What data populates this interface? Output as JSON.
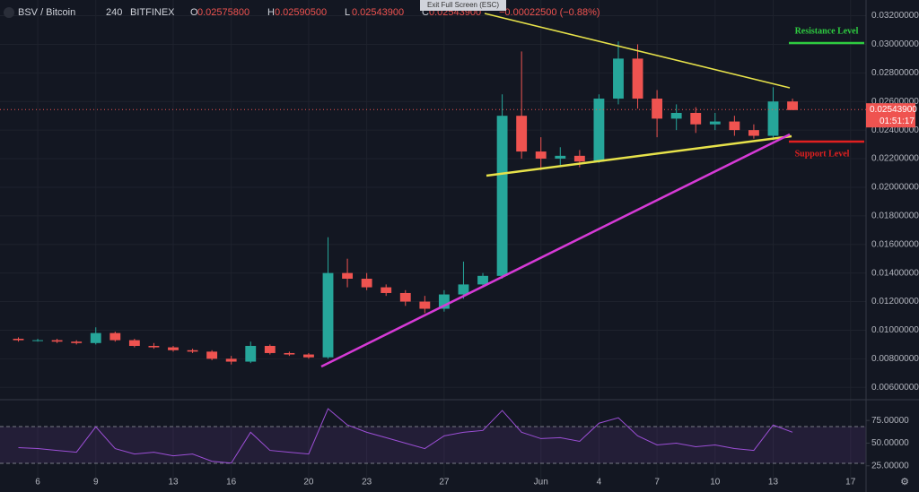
{
  "chart_data": {
    "type": "candlestick",
    "title": "BSV / Bitcoin",
    "interval": "240",
    "exchange": "BITFINEX",
    "header": [
      {
        "key": "O",
        "value": {
          "value": 0.025758,
          "label": "0.02575800"
        }
      },
      {
        "key": "H",
        "value": {
          "value": 0.025905,
          "label": "0.02590500"
        }
      },
      {
        "key": "L",
        "value": {
          "value": 0.025439,
          "label": "0.02543900"
        }
      },
      {
        "key": "C",
        "value": {
          "value": 0.025439,
          "label": "0.02543900"
        }
      }
    ],
    "change": "−0.00022500 (−0.88%)",
    "exit_button": "Exit Full Screen (ESC)",
    "annotations": {
      "resistance": "Resistance Level",
      "support": "Support Level"
    },
    "last_price": {
      "value": 0.025439,
      "label": "0.02543900"
    },
    "countdown": "01:51:17",
    "x": [
      -1,
      0,
      1,
      2,
      3,
      4,
      5,
      6,
      7,
      8,
      9,
      10,
      11,
      12,
      13,
      14,
      15,
      16,
      17,
      18,
      19,
      20,
      21,
      22,
      23,
      24,
      25,
      26,
      27,
      28,
      29,
      30,
      31,
      32,
      33,
      34,
      35,
      36,
      37,
      38,
      39
    ],
    "open": [
      0.0094,
      0.0093,
      0.0093,
      0.0092,
      0.0091,
      0.0098,
      0.0093,
      0.0089,
      0.0088,
      0.0086,
      0.0085,
      0.008,
      0.0078,
      0.0089,
      0.0084,
      0.0083,
      0.0081,
      0.014,
      0.0136,
      0.013,
      0.0126,
      0.012,
      0.0115,
      0.0125,
      0.0132,
      0.0138,
      0.025,
      0.0225,
      0.022,
      0.0222,
      0.0218,
      0.0262,
      0.029,
      0.0262,
      0.0248,
      0.0252,
      0.0244,
      0.0246,
      0.024,
      0.0236,
      0.026
    ],
    "high": [
      0.0095,
      0.0094,
      0.0094,
      0.0093,
      0.0102,
      0.0099,
      0.0094,
      0.0091,
      0.0089,
      0.0087,
      0.0086,
      0.0082,
      0.0092,
      0.009,
      0.0085,
      0.0084,
      0.0165,
      0.015,
      0.014,
      0.0132,
      0.0128,
      0.0124,
      0.0128,
      0.0148,
      0.014,
      0.0265,
      0.0295,
      0.0235,
      0.0228,
      0.0226,
      0.0265,
      0.0302,
      0.03,
      0.0268,
      0.0258,
      0.0256,
      0.0252,
      0.025,
      0.0244,
      0.027,
      0.0262
    ],
    "low": [
      0.0092,
      0.0092,
      0.0091,
      0.009,
      0.009,
      0.0092,
      0.0088,
      0.0087,
      0.0085,
      0.0084,
      0.0079,
      0.0076,
      0.0077,
      0.0083,
      0.0082,
      0.008,
      0.008,
      0.013,
      0.0128,
      0.0124,
      0.0117,
      0.0112,
      0.0113,
      0.0122,
      0.013,
      0.0136,
      0.022,
      0.0212,
      0.0215,
      0.0214,
      0.0217,
      0.0258,
      0.0255,
      0.0235,
      0.024,
      0.0238,
      0.024,
      0.0236,
      0.0234,
      0.0233,
      0.0254
    ],
    "close": [
      0.0093,
      0.0093,
      0.0092,
      0.0091,
      0.0098,
      0.0093,
      0.0089,
      0.0088,
      0.0086,
      0.0085,
      0.008,
      0.0078,
      0.0089,
      0.0084,
      0.0083,
      0.0081,
      0.014,
      0.0136,
      0.013,
      0.0126,
      0.012,
      0.0115,
      0.0125,
      0.0132,
      0.0138,
      0.025,
      0.0225,
      0.022,
      0.0222,
      0.0218,
      0.0262,
      0.029,
      0.0262,
      0.0248,
      0.0252,
      0.0244,
      0.0246,
      0.024,
      0.0236,
      0.026,
      0.0254
    ],
    "rsi": [
      45,
      44,
      42,
      40,
      68,
      44,
      38,
      40,
      36,
      38,
      30,
      28,
      62,
      42,
      40,
      38,
      88,
      70,
      62,
      56,
      50,
      44,
      58,
      62,
      64,
      86,
      62,
      55,
      56,
      52,
      72,
      78,
      58,
      48,
      50,
      46,
      48,
      44,
      42,
      70,
      62
    ],
    "up_color": "#26a69a",
    "down_color": "#ef5350",
    "rsi_color": "#9c4fd6",
    "xlim": [
      -1.95,
      42.8
    ],
    "xticks": [
      {
        "value": 0,
        "label": "6"
      },
      {
        "value": 3,
        "label": "9"
      },
      {
        "value": 7,
        "label": "13"
      },
      {
        "value": 10,
        "label": "16"
      },
      {
        "value": 14,
        "label": "20"
      },
      {
        "value": 17,
        "label": "23"
      },
      {
        "value": 21,
        "label": "27"
      },
      {
        "value": 26,
        "label": "Jun"
      },
      {
        "value": 29,
        "label": "4"
      },
      {
        "value": 32,
        "label": "7"
      },
      {
        "value": 35,
        "label": "10"
      },
      {
        "value": 38,
        "label": "13"
      },
      {
        "value": 42,
        "label": "17"
      }
    ],
    "ylim": [
      0.0052,
      0.0331
    ],
    "yticks": [
      {
        "value": 0.032,
        "label": "0.03200000"
      },
      {
        "value": 0.03,
        "label": "0.03000000"
      },
      {
        "value": 0.028,
        "label": "0.02800000"
      },
      {
        "value": 0.026,
        "label": "0.02600000"
      },
      {
        "value": 0.024,
        "label": "0.02400000"
      },
      {
        "value": 0.022,
        "label": "0.02200000"
      },
      {
        "value": 0.02,
        "label": "0.02000000"
      },
      {
        "value": 0.018,
        "label": "0.01800000"
      },
      {
        "value": 0.016,
        "label": "0.01600000"
      },
      {
        "value": 0.014,
        "label": "0.01400000"
      },
      {
        "value": 0.012,
        "label": "0.01200000"
      },
      {
        "value": 0.01,
        "label": "0.01000000"
      },
      {
        "value": 0.008,
        "label": "0.00800000"
      },
      {
        "value": 0.006,
        "label": "0.00600000"
      }
    ],
    "y2lim": [
      5,
      91
    ],
    "y2ticks": [
      {
        "value": 75,
        "label": "75.00000"
      },
      {
        "value": 50,
        "label": "50.00000"
      },
      {
        "value": 25,
        "label": "25.00000"
      }
    ],
    "grid": true
  }
}
